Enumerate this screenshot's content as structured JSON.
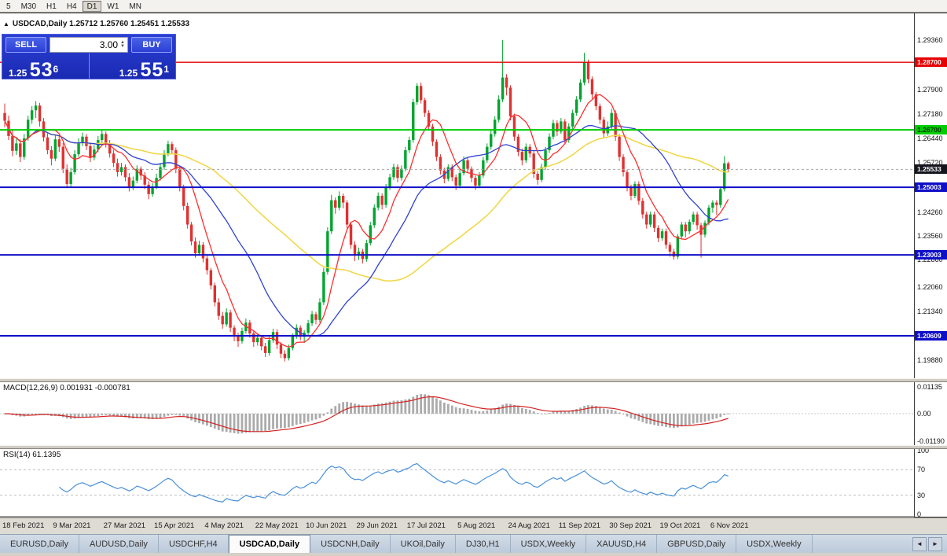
{
  "toolbar": {
    "periods": [
      "5",
      "M30",
      "H1",
      "H4",
      "D1",
      "W1",
      "MN"
    ],
    "active_period": "D1"
  },
  "chart_header": {
    "title": "USDCAD,Daily 1.25712 1.25760 1.25451 1.25533",
    "expand_glyph": "▲"
  },
  "one_click": {
    "sell_label": "SELL",
    "buy_label": "BUY",
    "volume": "3.00",
    "sell_price": {
      "prefix": "1.25",
      "big": "53",
      "sup": "6"
    },
    "buy_price": {
      "prefix": "1.25",
      "big": "55",
      "sup": "1"
    }
  },
  "price_scale": {
    "ticks": [
      {
        "label": "1.29360",
        "value": 1.2936
      },
      {
        "label": "1.27900",
        "value": 1.279
      },
      {
        "label": "1.27180",
        "value": 1.2718
      },
      {
        "label": "1.26440",
        "value": 1.2644
      },
      {
        "label": "1.25720",
        "value": 1.2572
      },
      {
        "label": "1.24260",
        "value": 1.2426
      },
      {
        "label": "1.23560",
        "value": 1.2356
      },
      {
        "label": "1.22860",
        "value": 1.2286
      },
      {
        "label": "1.22060",
        "value": 1.2206
      },
      {
        "label": "1.21340",
        "value": 1.2134
      },
      {
        "label": "1.19880",
        "value": 1.1988
      }
    ],
    "badges": [
      {
        "label": "1.28700",
        "value": 1.287,
        "bg": "#e60000",
        "fg": "#ffffff"
      },
      {
        "label": "1.26700",
        "value": 1.267,
        "bg": "#00cc00",
        "fg": "#003300"
      },
      {
        "label": "1.25533",
        "value": 1.25533,
        "bg": "#15151d",
        "fg": "#ffffff"
      },
      {
        "label": "1.25003",
        "value": 1.25003,
        "bg": "#0f0fc8",
        "fg": "#ffffff"
      },
      {
        "label": "1.23003",
        "value": 1.23003,
        "bg": "#0f0fc8",
        "fg": "#ffffff"
      },
      {
        "label": "1.20609",
        "value": 1.20609,
        "bg": "#0f0fc8",
        "fg": "#ffffff"
      }
    ]
  },
  "levels": [
    {
      "value": 1.287,
      "color": "#e60000",
      "width": 1.4
    },
    {
      "value": 1.267,
      "color": "#00cc00",
      "width": 2
    },
    {
      "value": 1.25003,
      "color": "#0f0fc8",
      "width": 2
    },
    {
      "value": 1.23003,
      "color": "#0f0fc8",
      "width": 2
    },
    {
      "value": 1.20609,
      "color": "#0f0fc8",
      "width": 2
    }
  ],
  "bid_line": {
    "value": 1.25533,
    "color": "#a8a8a8"
  },
  "indicators": {
    "macd": {
      "title": "MACD(12,26,9) 0.001931 -0.000781",
      "scale": [
        "0.01135",
        "0.00",
        "-0.01190"
      ]
    },
    "rsi": {
      "title": "RSI(14) 61.1395",
      "scale": [
        "100",
        "70",
        "30",
        "0"
      ],
      "levels": [
        70,
        30
      ]
    }
  },
  "x_axis": {
    "labels": [
      "18 Feb 2021",
      "9 Mar 2021",
      "27 Mar 2021",
      "15 Apr 2021",
      "4 May 2021",
      "22 May 2021",
      "10 Jun 2021",
      "29 Jun 2021",
      "17 Jul 2021",
      "5 Aug 2021",
      "24 Aug 2021",
      "11 Sep 2021",
      "30 Sep 2021",
      "19 Oct 2021",
      "6 Nov 2021"
    ],
    "tick_indices": [
      0,
      13,
      26,
      39,
      52,
      65,
      78,
      91,
      104,
      117,
      130,
      143,
      156,
      169,
      182
    ]
  },
  "tabs": {
    "items": [
      "EURUSD,Daily",
      "AUDUSD,Daily",
      "USDCHF,H4",
      "USDCAD,Daily",
      "USDCNH,Daily",
      "UKOil,Daily",
      "DJ30,H1",
      "USDX,Weekly",
      "XAUUSD,H4",
      "GBPUSD,Daily",
      "USDX,Weekly"
    ],
    "active_index": 3,
    "scroll_left_glyph": "◄",
    "scroll_right_glyph": "►"
  },
  "colors": {
    "bull": "#00a42e",
    "bear": "#e03131",
    "ma_fast": "#ff2e2e",
    "ma_mid": "#2f43d0",
    "ma_slow": "#f0d84a",
    "macd_bar": "#ababab",
    "macd_signal": "#d42222",
    "rsi_line": "#4a90d9"
  },
  "chart_data": {
    "type": "candlestick",
    "symbol": "USDCAD",
    "timeframe": "Daily",
    "current_bar": {
      "open": 1.25712,
      "high": 1.2576,
      "low": 1.25451,
      "close": 1.25533
    },
    "bid": 1.25536,
    "ask": 1.25551,
    "y_range": {
      "max": 1.301,
      "min": 1.194
    },
    "macd_range": {
      "max": 0.02,
      "min": -0.02
    },
    "ma_periods": {
      "fast": 8,
      "mid": 24,
      "slow": 55
    },
    "candles": [
      [
        1.272,
        1.2748,
        1.2678,
        1.2697
      ],
      [
        1.2697,
        1.2712,
        1.264,
        1.2652
      ],
      [
        1.2652,
        1.2668,
        1.2592,
        1.2608
      ],
      [
        1.2608,
        1.2645,
        1.2596,
        1.263
      ],
      [
        1.263,
        1.2642,
        1.2575,
        1.259
      ],
      [
        1.259,
        1.2658,
        1.2582,
        1.2645
      ],
      [
        1.2645,
        1.2712,
        1.2638,
        1.27
      ],
      [
        1.27,
        1.274,
        1.2688,
        1.2728
      ],
      [
        1.2728,
        1.2755,
        1.2705,
        1.2742
      ],
      [
        1.2742,
        1.275,
        1.268,
        1.2695
      ],
      [
        1.2695,
        1.2705,
        1.2636,
        1.2648
      ],
      [
        1.2648,
        1.266,
        1.2598,
        1.261
      ],
      [
        1.261,
        1.2622,
        1.2565,
        1.2585
      ],
      [
        1.2585,
        1.2655,
        1.2578,
        1.2642
      ],
      [
        1.2642,
        1.2652,
        1.2605,
        1.262
      ],
      [
        1.262,
        1.2632,
        1.2542,
        1.2555
      ],
      [
        1.2555,
        1.2568,
        1.2498,
        1.251
      ],
      [
        1.251,
        1.2558,
        1.2502,
        1.2545
      ],
      [
        1.2545,
        1.261,
        1.2538,
        1.2598
      ],
      [
        1.2598,
        1.2645,
        1.259,
        1.2632
      ],
      [
        1.2632,
        1.2662,
        1.2622,
        1.265
      ],
      [
        1.265,
        1.2658,
        1.261,
        1.2622
      ],
      [
        1.2622,
        1.263,
        1.2575,
        1.2588
      ],
      [
        1.2588,
        1.2625,
        1.258,
        1.2612
      ],
      [
        1.2612,
        1.2652,
        1.2605,
        1.264
      ],
      [
        1.264,
        1.267,
        1.2632,
        1.2658
      ],
      [
        1.2658,
        1.2665,
        1.2618,
        1.263
      ],
      [
        1.263,
        1.264,
        1.2588,
        1.26
      ],
      [
        1.26,
        1.2612,
        1.256,
        1.2572
      ],
      [
        1.2572,
        1.2585,
        1.2532,
        1.2545
      ],
      [
        1.2545,
        1.2572,
        1.2535,
        1.256
      ],
      [
        1.256,
        1.2568,
        1.2518,
        1.253
      ],
      [
        1.253,
        1.2542,
        1.2488,
        1.25
      ],
      [
        1.25,
        1.2532,
        1.2492,
        1.252
      ],
      [
        1.252,
        1.2565,
        1.2512,
        1.2555
      ],
      [
        1.2555,
        1.2562,
        1.2522,
        1.2535
      ],
      [
        1.2535,
        1.2545,
        1.2495,
        1.2508
      ],
      [
        1.2508,
        1.2518,
        1.2465,
        1.248
      ],
      [
        1.248,
        1.2512,
        1.2472,
        1.2502
      ],
      [
        1.2502,
        1.254,
        1.2495,
        1.2528
      ],
      [
        1.2528,
        1.2572,
        1.252,
        1.256
      ],
      [
        1.256,
        1.261,
        1.2552,
        1.26
      ],
      [
        1.26,
        1.2638,
        1.2592,
        1.2628
      ],
      [
        1.2628,
        1.2635,
        1.2598,
        1.261
      ],
      [
        1.261,
        1.2618,
        1.2542,
        1.2555
      ],
      [
        1.2555,
        1.2562,
        1.2488,
        1.25
      ],
      [
        1.25,
        1.2508,
        1.2432,
        1.2445
      ],
      [
        1.2445,
        1.2455,
        1.2378,
        1.239
      ],
      [
        1.239,
        1.2398,
        1.2328,
        1.234
      ],
      [
        1.234,
        1.2352,
        1.2292,
        1.2305
      ],
      [
        1.2305,
        1.2342,
        1.2298,
        1.233
      ],
      [
        1.233,
        1.2338,
        1.2278,
        1.229
      ],
      [
        1.229,
        1.2298,
        1.2242,
        1.2255
      ],
      [
        1.2255,
        1.2262,
        1.2198,
        1.221
      ],
      [
        1.221,
        1.2218,
        1.2148,
        1.216
      ],
      [
        1.216,
        1.2172,
        1.2108,
        1.212
      ],
      [
        1.212,
        1.2132,
        1.2082,
        1.2095
      ],
      [
        1.2095,
        1.2142,
        1.2088,
        1.213
      ],
      [
        1.213,
        1.2138,
        1.2072,
        1.2085
      ],
      [
        1.2085,
        1.2092,
        1.2045,
        1.206
      ],
      [
        1.206,
        1.207,
        1.2028,
        1.2045
      ],
      [
        1.2045,
        1.2085,
        1.2038,
        1.2075
      ],
      [
        1.2075,
        1.2112,
        1.2068,
        1.21
      ],
      [
        1.21,
        1.2108,
        1.2055,
        1.2068
      ],
      [
        1.2068,
        1.2075,
        1.2028,
        1.2042
      ],
      [
        1.2042,
        1.2068,
        1.2032,
        1.2055
      ],
      [
        1.2055,
        1.2062,
        1.2018,
        1.203
      ],
      [
        1.203,
        1.204,
        1.1998,
        1.201
      ],
      [
        1.201,
        1.2058,
        1.2002,
        1.2048
      ],
      [
        1.2048,
        1.2082,
        1.204,
        1.2072
      ],
      [
        1.2072,
        1.208,
        1.2022,
        1.2035
      ],
      [
        1.2035,
        1.2042,
        1.1995,
        1.2008
      ],
      [
        1.2008,
        1.2018,
        1.1985,
        1.1995
      ],
      [
        1.1995,
        1.2035,
        1.1988,
        1.2025
      ],
      [
        1.2025,
        1.2068,
        1.2018,
        1.206
      ],
      [
        1.206,
        1.2095,
        1.2052,
        1.2085
      ],
      [
        1.2085,
        1.2092,
        1.2048,
        1.2058
      ],
      [
        1.2058,
        1.2078,
        1.204,
        1.207
      ],
      [
        1.207,
        1.2108,
        1.2062,
        1.2098
      ],
      [
        1.2098,
        1.2135,
        1.209,
        1.2125
      ],
      [
        1.2125,
        1.2132,
        1.2095,
        1.2108
      ],
      [
        1.2108,
        1.2172,
        1.21,
        1.216
      ],
      [
        1.216,
        1.2262,
        1.2152,
        1.225
      ],
      [
        1.225,
        1.2382,
        1.2242,
        1.237
      ],
      [
        1.237,
        1.2478,
        1.2362,
        1.2462
      ],
      [
        1.2462,
        1.247,
        1.2422,
        1.244
      ],
      [
        1.244,
        1.2488,
        1.2432,
        1.2475
      ],
      [
        1.2475,
        1.2482,
        1.2438,
        1.2455
      ],
      [
        1.2455,
        1.2462,
        1.2378,
        1.239
      ],
      [
        1.239,
        1.2398,
        1.2318,
        1.233
      ],
      [
        1.233,
        1.234,
        1.2282,
        1.2298
      ],
      [
        1.2298,
        1.2322,
        1.2285,
        1.231
      ],
      [
        1.231,
        1.2318,
        1.2275,
        1.2288
      ],
      [
        1.2288,
        1.2345,
        1.228,
        1.2335
      ],
      [
        1.2335,
        1.2398,
        1.2328,
        1.2388
      ],
      [
        1.2388,
        1.245,
        1.238,
        1.244
      ],
      [
        1.244,
        1.2485,
        1.2432,
        1.2475
      ],
      [
        1.2475,
        1.2482,
        1.2435,
        1.2448
      ],
      [
        1.2448,
        1.251,
        1.244,
        1.25
      ],
      [
        1.25,
        1.254,
        1.2492,
        1.253
      ],
      [
        1.253,
        1.257,
        1.2522,
        1.256
      ],
      [
        1.256,
        1.2568,
        1.2515,
        1.2528
      ],
      [
        1.2528,
        1.2565,
        1.252,
        1.2555
      ],
      [
        1.2555,
        1.262,
        1.2548,
        1.261
      ],
      [
        1.261,
        1.265,
        1.2602,
        1.264
      ],
      [
        1.264,
        1.2762,
        1.2632,
        1.2752
      ],
      [
        1.2752,
        1.2808,
        1.2744,
        1.28
      ],
      [
        1.28,
        1.281,
        1.2748,
        1.2758
      ],
      [
        1.2758,
        1.2765,
        1.2708,
        1.272
      ],
      [
        1.272,
        1.2728,
        1.2668,
        1.268
      ],
      [
        1.268,
        1.2688,
        1.2622,
        1.2635
      ],
      [
        1.2635,
        1.2642,
        1.2578,
        1.259
      ],
      [
        1.259,
        1.2598,
        1.2538,
        1.255
      ],
      [
        1.255,
        1.2558,
        1.2512,
        1.2525
      ],
      [
        1.2525,
        1.2568,
        1.2518,
        1.256
      ],
      [
        1.256,
        1.2568,
        1.2518,
        1.253
      ],
      [
        1.253,
        1.2538,
        1.2492,
        1.2505
      ],
      [
        1.2505,
        1.2552,
        1.2498,
        1.2542
      ],
      [
        1.2542,
        1.2592,
        1.2535,
        1.258
      ],
      [
        1.258,
        1.2588,
        1.2542,
        1.2555
      ],
      [
        1.2555,
        1.2562,
        1.2515,
        1.2528
      ],
      [
        1.2528,
        1.2535,
        1.2492,
        1.2505
      ],
      [
        1.2505,
        1.2545,
        1.2498,
        1.2535
      ],
      [
        1.2535,
        1.259,
        1.2528,
        1.258
      ],
      [
        1.258,
        1.263,
        1.2572,
        1.262
      ],
      [
        1.262,
        1.2668,
        1.2612,
        1.2658
      ],
      [
        1.2658,
        1.271,
        1.265,
        1.27
      ],
      [
        1.27,
        1.2772,
        1.2692,
        1.276
      ],
      [
        1.276,
        1.2936,
        1.2752,
        1.2825
      ],
      [
        1.2825,
        1.2835,
        1.2772,
        1.2795
      ],
      [
        1.2795,
        1.2802,
        1.2698,
        1.271
      ],
      [
        1.271,
        1.2718,
        1.2638,
        1.265
      ],
      [
        1.265,
        1.2658,
        1.2592,
        1.2605
      ],
      [
        1.2605,
        1.2615,
        1.2565,
        1.258
      ],
      [
        1.258,
        1.263,
        1.2572,
        1.262
      ],
      [
        1.262,
        1.2628,
        1.2588,
        1.26
      ],
      [
        1.26,
        1.2608,
        1.2528,
        1.254
      ],
      [
        1.254,
        1.2548,
        1.2508,
        1.2522
      ],
      [
        1.2522,
        1.257,
        1.2515,
        1.256
      ],
      [
        1.256,
        1.262,
        1.2552,
        1.261
      ],
      [
        1.261,
        1.266,
        1.2602,
        1.265
      ],
      [
        1.265,
        1.27,
        1.2642,
        1.269
      ],
      [
        1.269,
        1.2698,
        1.2652,
        1.2665
      ],
      [
        1.2665,
        1.2705,
        1.2658,
        1.2695
      ],
      [
        1.2695,
        1.2702,
        1.2628,
        1.264
      ],
      [
        1.264,
        1.269,
        1.2632,
        1.268
      ],
      [
        1.268,
        1.273,
        1.2672,
        1.272
      ],
      [
        1.272,
        1.277,
        1.2712,
        1.276
      ],
      [
        1.276,
        1.282,
        1.2752,
        1.281
      ],
      [
        1.281,
        1.2898,
        1.2802,
        1.287
      ],
      [
        1.287,
        1.2878,
        1.2808,
        1.282
      ],
      [
        1.282,
        1.2828,
        1.2762,
        1.2775
      ],
      [
        1.2775,
        1.2782,
        1.2728,
        1.274
      ],
      [
        1.274,
        1.2748,
        1.2688,
        1.27
      ],
      [
        1.27,
        1.2708,
        1.2648,
        1.266
      ],
      [
        1.266,
        1.2695,
        1.2652,
        1.268
      ],
      [
        1.268,
        1.2732,
        1.2672,
        1.272
      ],
      [
        1.272,
        1.2728,
        1.2638,
        1.265
      ],
      [
        1.265,
        1.2658,
        1.2578,
        1.259
      ],
      [
        1.259,
        1.2598,
        1.2532,
        1.2545
      ],
      [
        1.2545,
        1.2552,
        1.2488,
        1.25
      ],
      [
        1.25,
        1.2508,
        1.2462,
        1.2475
      ],
      [
        1.2475,
        1.2518,
        1.2468,
        1.251
      ],
      [
        1.251,
        1.2518,
        1.2448,
        1.246
      ],
      [
        1.246,
        1.2468,
        1.2408,
        1.242
      ],
      [
        1.242,
        1.2428,
        1.2378,
        1.239
      ],
      [
        1.239,
        1.2428,
        1.2382,
        1.242
      ],
      [
        1.242,
        1.2428,
        1.2368,
        1.238
      ],
      [
        1.238,
        1.2388,
        1.2338,
        1.235
      ],
      [
        1.235,
        1.2378,
        1.2342,
        1.237
      ],
      [
        1.237,
        1.2378,
        1.2318,
        1.233
      ],
      [
        1.233,
        1.2338,
        1.2295,
        1.231
      ],
      [
        1.231,
        1.2318,
        1.2286,
        1.2295
      ],
      [
        1.2295,
        1.2362,
        1.2288,
        1.2355
      ],
      [
        1.2355,
        1.2398,
        1.2348,
        1.239
      ],
      [
        1.239,
        1.2398,
        1.2352,
        1.237
      ],
      [
        1.237,
        1.2405,
        1.2362,
        1.2398
      ],
      [
        1.2398,
        1.2428,
        1.239,
        1.242
      ],
      [
        1.242,
        1.2428,
        1.2375,
        1.2388
      ],
      [
        1.2388,
        1.2395,
        1.2292,
        1.236
      ],
      [
        1.236,
        1.2402,
        1.2352,
        1.2395
      ],
      [
        1.2395,
        1.2448,
        1.2388,
        1.244
      ],
      [
        1.244,
        1.2462,
        1.2425,
        1.2455
      ],
      [
        1.2455,
        1.2462,
        1.2418,
        1.2448
      ],
      [
        1.2448,
        1.2502,
        1.244,
        1.2495
      ],
      [
        1.2495,
        1.2592,
        1.2488,
        1.2571
      ],
      [
        1.25712,
        1.2576,
        1.25451,
        1.25533
      ]
    ]
  }
}
